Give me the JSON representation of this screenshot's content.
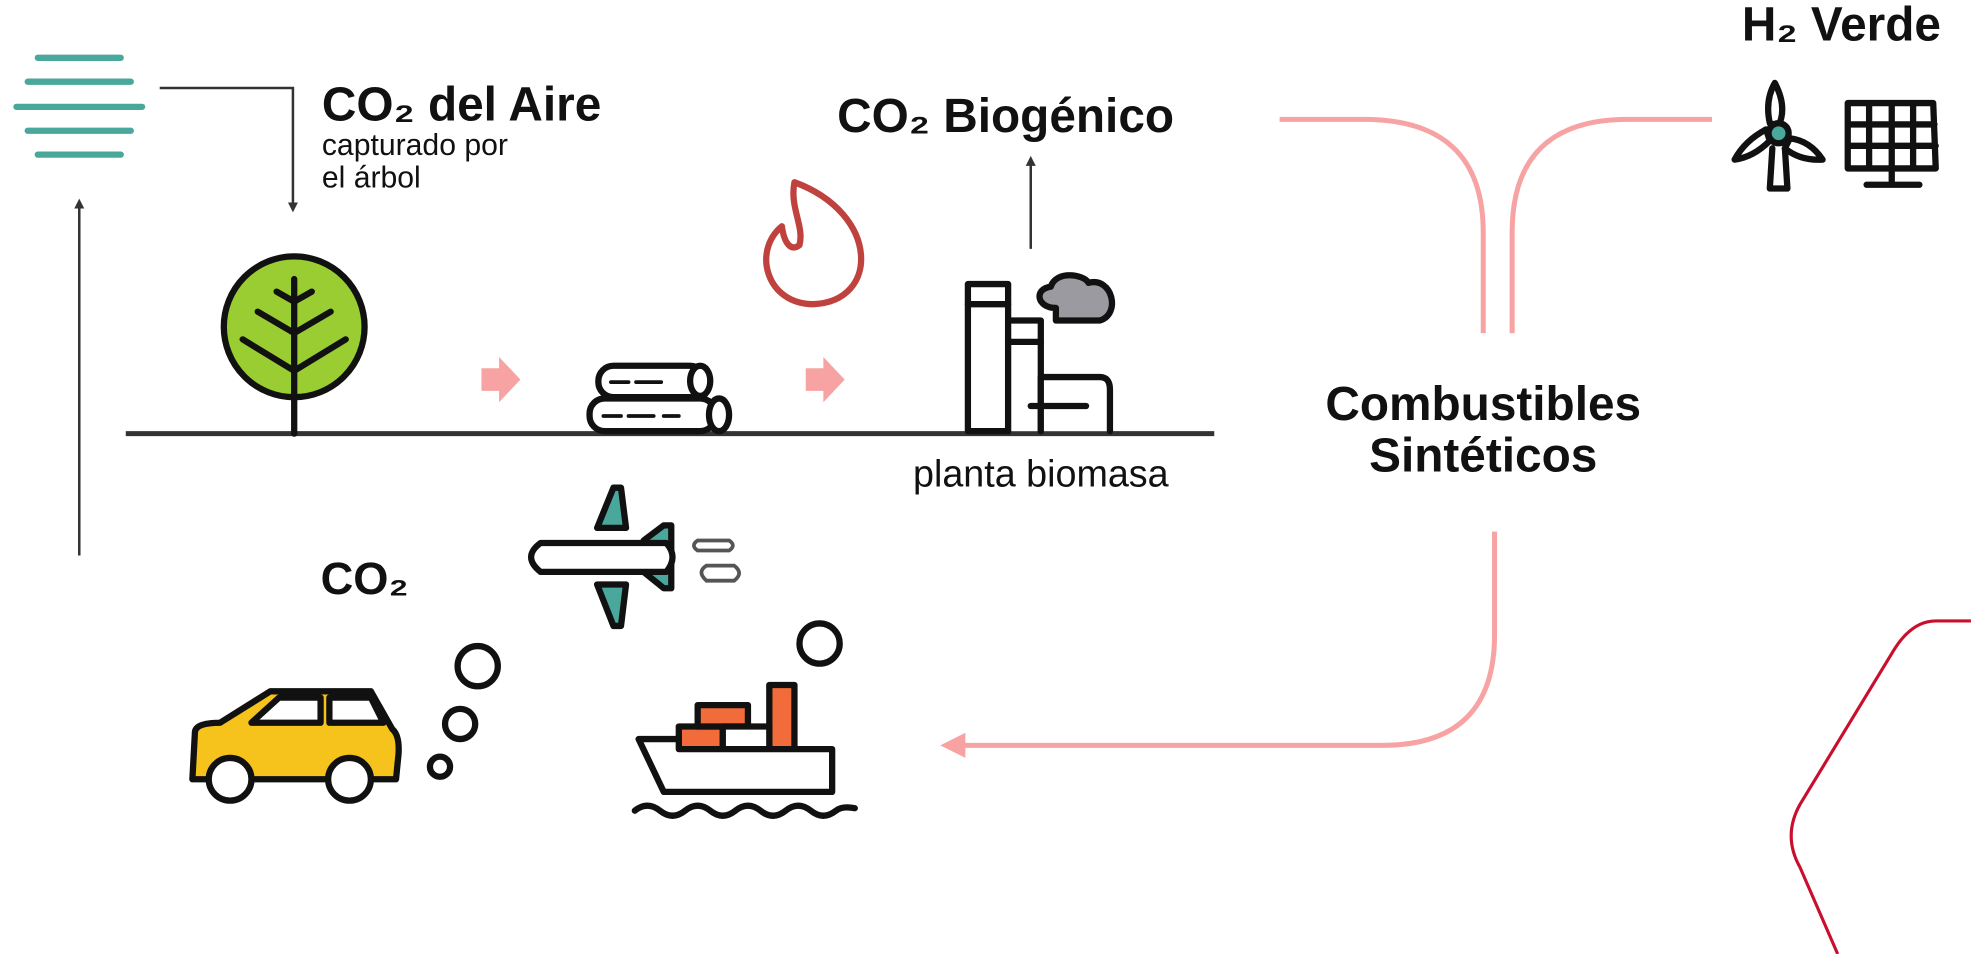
{
  "labels": {
    "h2_verde": "H₂ Verde",
    "co2_aire": {
      "title": "CO₂ del Aire",
      "subtitle": [
        "capturado por",
        "el árbol"
      ]
    },
    "co2_biogenico": "CO₂ Biogénico",
    "planta": "planta biomasa",
    "combustibles": [
      "Combustibles",
      "Sintéticos"
    ],
    "co2": "CO₂"
  }
}
